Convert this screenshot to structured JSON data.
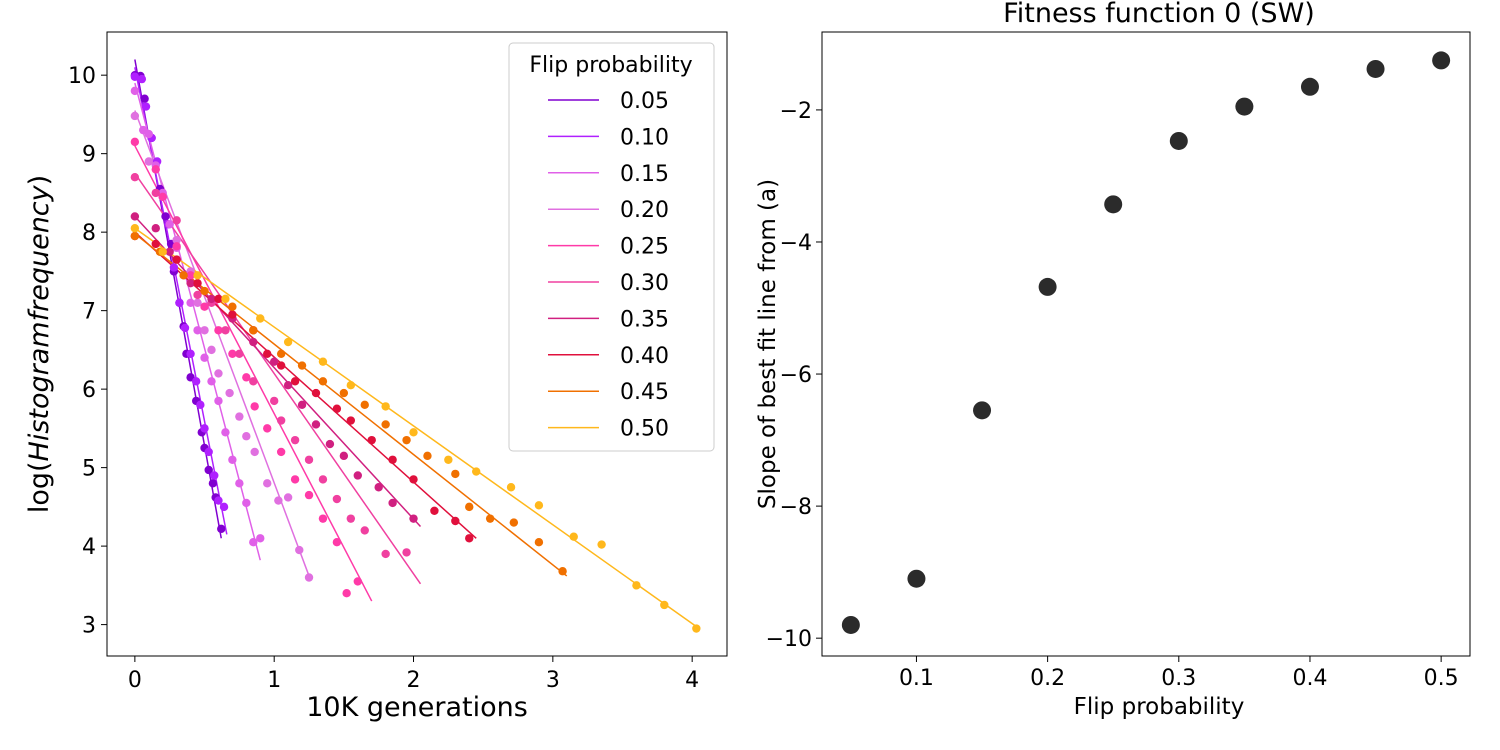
{
  "chart_data": [
    {
      "type": "scatter",
      "title": "",
      "xlabel": "10K generations",
      "ylabel_prefix": "log(",
      "ylabel_italic": "Histogramfrequency",
      "ylabel_suffix": ")",
      "xlim": [
        -0.2,
        4.25
      ],
      "ylim": [
        2.6,
        10.55
      ],
      "xticks": [
        0,
        1,
        2,
        3,
        4
      ],
      "yticks": [
        3,
        4,
        5,
        6,
        7,
        8,
        9,
        10
      ],
      "grid": false,
      "legend": {
        "title": "Flip probability",
        "placement": "top-right"
      },
      "series": [
        {
          "name": "0.05",
          "color": "#8000d0",
          "line": {
            "x": [
              0.0,
              0.62
            ],
            "y": [
              10.2,
              4.1
            ]
          },
          "points": [
            [
              0.0,
              10.0
            ],
            [
              0.04,
              9.99
            ],
            [
              0.07,
              9.7
            ],
            [
              0.12,
              9.2
            ],
            [
              0.18,
              8.55
            ],
            [
              0.22,
              8.2
            ],
            [
              0.26,
              7.85
            ],
            [
              0.28,
              7.5
            ],
            [
              0.32,
              7.1
            ],
            [
              0.35,
              6.8
            ],
            [
              0.37,
              6.45
            ],
            [
              0.4,
              6.15
            ],
            [
              0.44,
              5.85
            ],
            [
              0.48,
              5.45
            ],
            [
              0.5,
              5.25
            ],
            [
              0.53,
              4.97
            ],
            [
              0.56,
              4.8
            ],
            [
              0.58,
              4.62
            ],
            [
              0.62,
              4.22
            ]
          ]
        },
        {
          "name": "0.10",
          "color": "#b020ff",
          "line": {
            "x": [
              0.0,
              0.66
            ],
            "y": [
              10.1,
              4.15
            ]
          },
          "points": [
            [
              0.0,
              9.98
            ],
            [
              0.05,
              9.95
            ],
            [
              0.08,
              9.6
            ],
            [
              0.12,
              9.2
            ],
            [
              0.16,
              8.9
            ],
            [
              0.2,
              8.45
            ],
            [
              0.24,
              8.1
            ],
            [
              0.28,
              7.55
            ],
            [
              0.32,
              7.1
            ],
            [
              0.36,
              6.78
            ],
            [
              0.4,
              6.45
            ],
            [
              0.44,
              6.1
            ],
            [
              0.47,
              5.8
            ],
            [
              0.5,
              5.5
            ],
            [
              0.53,
              5.2
            ],
            [
              0.57,
              4.9
            ],
            [
              0.6,
              4.58
            ],
            [
              0.64,
              4.5
            ]
          ]
        },
        {
          "name": "0.15",
          "color": "#e060e8",
          "line": {
            "x": [
              0.0,
              0.9
            ],
            "y": [
              9.9,
              3.82
            ]
          },
          "points": [
            [
              0.0,
              9.8
            ],
            [
              0.06,
              9.3
            ],
            [
              0.1,
              9.25
            ],
            [
              0.15,
              8.85
            ],
            [
              0.2,
              8.5
            ],
            [
              0.25,
              8.1
            ],
            [
              0.3,
              7.8
            ],
            [
              0.35,
              7.45
            ],
            [
              0.4,
              7.1
            ],
            [
              0.45,
              6.75
            ],
            [
              0.5,
              6.4
            ],
            [
              0.55,
              6.1
            ],
            [
              0.6,
              5.85
            ],
            [
              0.65,
              5.45
            ],
            [
              0.7,
              5.1
            ],
            [
              0.75,
              4.8
            ],
            [
              0.8,
              4.55
            ],
            [
              0.85,
              4.05
            ],
            [
              0.9,
              4.1
            ]
          ]
        },
        {
          "name": "0.20",
          "color": "#e070e0",
          "line": {
            "x": [
              0.0,
              1.25
            ],
            "y": [
              9.55,
              3.62
            ]
          },
          "points": [
            [
              0.0,
              9.48
            ],
            [
              0.1,
              8.9
            ],
            [
              0.2,
              8.45
            ],
            [
              0.3,
              7.9
            ],
            [
              0.4,
              7.5
            ],
            [
              0.45,
              7.1
            ],
            [
              0.5,
              6.75
            ],
            [
              0.55,
              6.5
            ],
            [
              0.6,
              6.2
            ],
            [
              0.68,
              5.95
            ],
            [
              0.75,
              5.65
            ],
            [
              0.8,
              5.4
            ],
            [
              0.86,
              5.2
            ],
            [
              0.95,
              4.8
            ],
            [
              1.03,
              4.58
            ],
            [
              1.1,
              4.62
            ],
            [
              1.18,
              3.95
            ],
            [
              1.25,
              3.6
            ]
          ]
        },
        {
          "name": "0.25",
          "color": "#ff3aa8",
          "line": {
            "x": [
              0.0,
              1.7
            ],
            "y": [
              9.1,
              3.3
            ]
          },
          "points": [
            [
              0.0,
              9.15
            ],
            [
              0.15,
              8.8
            ],
            [
              0.2,
              8.45
            ],
            [
              0.3,
              7.82
            ],
            [
              0.4,
              7.45
            ],
            [
              0.5,
              7.05
            ],
            [
              0.6,
              6.75
            ],
            [
              0.7,
              6.45
            ],
            [
              0.8,
              6.15
            ],
            [
              0.86,
              5.78
            ],
            [
              0.95,
              5.5
            ],
            [
              1.05,
              5.2
            ],
            [
              1.15,
              4.85
            ],
            [
              1.25,
              4.65
            ],
            [
              1.35,
              4.35
            ],
            [
              1.45,
              4.05
            ],
            [
              1.52,
              3.4
            ],
            [
              1.6,
              3.55
            ]
          ]
        },
        {
          "name": "0.30",
          "color": "#f040a0",
          "line": {
            "x": [
              0.0,
              2.05
            ],
            "y": [
              8.75,
              3.52
            ]
          },
          "points": [
            [
              0.0,
              8.7
            ],
            [
              0.15,
              8.5
            ],
            [
              0.3,
              8.15
            ],
            [
              0.45,
              7.2
            ],
            [
              0.55,
              7.1
            ],
            [
              0.65,
              6.75
            ],
            [
              0.75,
              6.45
            ],
            [
              0.85,
              6.1
            ],
            [
              1.0,
              5.85
            ],
            [
              1.05,
              5.6
            ],
            [
              1.15,
              5.35
            ],
            [
              1.25,
              5.1
            ],
            [
              1.35,
              4.85
            ],
            [
              1.45,
              4.6
            ],
            [
              1.55,
              4.35
            ],
            [
              1.65,
              4.2
            ],
            [
              1.8,
              3.9
            ],
            [
              1.95,
              3.92
            ]
          ]
        },
        {
          "name": "0.35",
          "color": "#d02080",
          "line": {
            "x": [
              0.0,
              2.05
            ],
            "y": [
              8.2,
              4.25
            ]
          },
          "points": [
            [
              0.0,
              8.2
            ],
            [
              0.15,
              8.05
            ],
            [
              0.25,
              7.75
            ],
            [
              0.4,
              7.35
            ],
            [
              0.55,
              7.15
            ],
            [
              0.7,
              6.9
            ],
            [
              0.85,
              6.6
            ],
            [
              1.0,
              6.35
            ],
            [
              1.1,
              6.05
            ],
            [
              1.2,
              5.8
            ],
            [
              1.3,
              5.55
            ],
            [
              1.4,
              5.3
            ],
            [
              1.5,
              5.15
            ],
            [
              1.6,
              4.9
            ],
            [
              1.75,
              4.75
            ],
            [
              1.85,
              4.55
            ],
            [
              2.0,
              4.35
            ]
          ]
        },
        {
          "name": "0.40",
          "color": "#e0103c",
          "line": {
            "x": [
              0.0,
              2.45
            ],
            "y": [
              8.0,
              4.1
            ]
          },
          "points": [
            [
              0.0,
              7.95
            ],
            [
              0.15,
              7.85
            ],
            [
              0.3,
              7.65
            ],
            [
              0.45,
              7.35
            ],
            [
              0.6,
              7.15
            ],
            [
              0.7,
              6.95
            ],
            [
              0.85,
              6.75
            ],
            [
              0.95,
              6.45
            ],
            [
              1.05,
              6.3
            ],
            [
              1.15,
              6.1
            ],
            [
              1.3,
              5.95
            ],
            [
              1.45,
              5.75
            ],
            [
              1.55,
              5.6
            ],
            [
              1.7,
              5.35
            ],
            [
              1.85,
              5.1
            ],
            [
              2.0,
              4.85
            ],
            [
              2.15,
              4.45
            ],
            [
              2.3,
              4.32
            ],
            [
              2.4,
              4.1
            ]
          ]
        },
        {
          "name": "0.45",
          "color": "#f07000",
          "line": {
            "x": [
              0.0,
              3.1
            ],
            "y": [
              7.98,
              3.62
            ]
          },
          "points": [
            [
              0.0,
              7.95
            ],
            [
              0.18,
              7.75
            ],
            [
              0.35,
              7.45
            ],
            [
              0.5,
              7.25
            ],
            [
              0.7,
              7.05
            ],
            [
              0.85,
              6.75
            ],
            [
              1.05,
              6.45
            ],
            [
              1.2,
              6.3
            ],
            [
              1.35,
              6.1
            ],
            [
              1.5,
              5.95
            ],
            [
              1.65,
              5.8
            ],
            [
              1.8,
              5.55
            ],
            [
              1.95,
              5.35
            ],
            [
              2.1,
              5.15
            ],
            [
              2.3,
              4.92
            ],
            [
              2.4,
              4.5
            ],
            [
              2.55,
              4.35
            ],
            [
              2.72,
              4.3
            ],
            [
              2.9,
              4.05
            ],
            [
              3.07,
              3.68
            ]
          ]
        },
        {
          "name": "0.50",
          "color": "#ffb81c",
          "line": {
            "x": [
              0.0,
              4.05
            ],
            "y": [
              8.05,
              2.95
            ]
          },
          "points": [
            [
              0.0,
              8.05
            ],
            [
              0.2,
              7.75
            ],
            [
              0.45,
              7.45
            ],
            [
              0.65,
              7.15
            ],
            [
              0.9,
              6.9
            ],
            [
              1.1,
              6.6
            ],
            [
              1.35,
              6.35
            ],
            [
              1.55,
              6.05
            ],
            [
              1.8,
              5.78
            ],
            [
              2.0,
              5.45
            ],
            [
              2.25,
              5.1
            ],
            [
              2.45,
              4.95
            ],
            [
              2.7,
              4.75
            ],
            [
              2.9,
              4.52
            ],
            [
              3.15,
              4.12
            ],
            [
              3.35,
              4.02
            ],
            [
              3.6,
              3.5
            ],
            [
              3.8,
              3.25
            ],
            [
              4.03,
              2.95
            ]
          ]
        }
      ]
    },
    {
      "type": "scatter",
      "title": "Fitness function 0 (SW)",
      "xlabel": "Flip probability",
      "ylabel": "Slope of best fit line from (a)",
      "xlim": [
        0.028,
        0.522
      ],
      "ylim": [
        -10.27,
        -0.82
      ],
      "xticks": [
        0.1,
        0.2,
        0.3,
        0.4,
        0.5
      ],
      "xtick_labels": [
        "0.1",
        "0.2",
        "0.3",
        "0.4",
        "0.5"
      ],
      "yticks": [
        -10,
        -8,
        -6,
        -4,
        -2
      ],
      "ytick_labels": [
        "−10",
        "−8",
        "−6",
        "−4",
        "−2"
      ],
      "grid": false,
      "point_color": "#2b2b2b",
      "x": [
        0.05,
        0.1,
        0.15,
        0.2,
        0.25,
        0.3,
        0.35,
        0.4,
        0.45,
        0.5
      ],
      "y": [
        -9.8,
        -9.1,
        -6.55,
        -4.68,
        -3.43,
        -2.47,
        -1.95,
        -1.65,
        -1.38,
        -1.25
      ]
    }
  ]
}
